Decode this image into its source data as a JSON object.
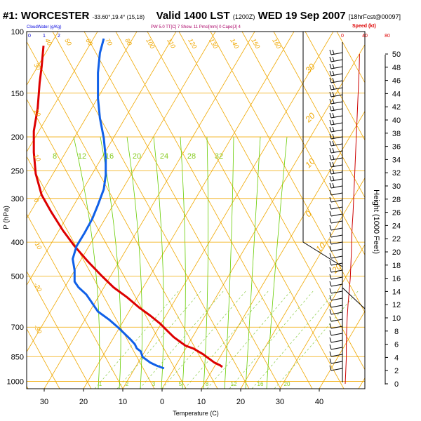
{
  "header": {
    "station": "#1: WORCESTER",
    "coords": "-33.60°,19.4° (15,18)",
    "valid": "Valid 1400 LST",
    "utc": "(1200Z)",
    "date": "WED 19 Sep 2007",
    "fcst": "[18hrFcst@00097]"
  },
  "legend_top": {
    "cloudwater": "CloudWater (g/Kg)",
    "cw_ticks": [
      "0",
      "1",
      "2"
    ],
    "stability": "PW 5.0 TT[C]  7 Show. 11 Pmsl[mm]  0 Cape[J]  4",
    "speed": "Speed (kt)",
    "speed_ticks": [
      "0",
      "40",
      "80"
    ]
  },
  "chart_data": {
    "type": "line",
    "subtype": "skew-T log-p sounding",
    "xlabel": "Temperature (C)",
    "ylabel": "P (hPa)",
    "y2label": "Height (1000 Feet)",
    "y_scale": "log",
    "xlim": [
      -35,
      45
    ],
    "ylim": [
      1050,
      100
    ],
    "x_ticks": [
      -30,
      -20,
      -10,
      0,
      10,
      20,
      30,
      40
    ],
    "x_tick_labels": [
      "30",
      "20",
      "10",
      "0",
      "10",
      "20",
      "30",
      "40"
    ],
    "p_ticks": [
      100,
      150,
      200,
      250,
      300,
      400,
      500,
      700,
      850,
      1000
    ],
    "height_ticks": [
      0,
      2,
      4,
      6,
      8,
      10,
      12,
      14,
      16,
      18,
      20,
      22,
      24,
      26,
      28,
      30,
      32,
      34,
      36,
      38,
      40,
      42,
      44,
      46,
      48,
      50
    ],
    "series": [
      {
        "color": "#dd0000",
        "points": [
          [
            870,
            31
          ],
          [
            880,
            30
          ],
          [
            900,
            27
          ],
          [
            930,
            24
          ],
          [
            960,
            21
          ],
          [
            1000,
            16
          ],
          [
            1010,
            14
          ],
          [
            1020,
            12
          ],
          [
            1050,
            9
          ],
          [
            1080,
            6
          ],
          [
            1120,
            3
          ],
          [
            1175,
            -1
          ],
          [
            1230,
            -6
          ],
          [
            1290,
            -12
          ],
          [
            1360,
            -18
          ],
          [
            1430,
            -25
          ],
          [
            1510,
            -31
          ],
          [
            1610,
            -38
          ],
          [
            1720,
            -45
          ],
          [
            1830,
            -51
          ],
          [
            1960,
            -57
          ],
          [
            2080,
            -62
          ],
          [
            2230,
            -65
          ],
          [
            2380,
            -66
          ],
          [
            2530,
            -66
          ],
          [
            2690,
            -64
          ],
          [
            2870,
            -63
          ],
          [
            2980,
            -62
          ],
          [
            3130,
            -61
          ]
        ]
      },
      {
        "color": "#1060e8",
        "points": [
          [
            860,
            1
          ],
          [
            880,
            -3
          ],
          [
            900,
            -6
          ],
          [
            920,
            -8
          ],
          [
            940,
            -10
          ],
          [
            980,
            -11
          ],
          [
            1000,
            -13
          ],
          [
            1030,
            -14
          ],
          [
            1060,
            -16
          ],
          [
            1100,
            -19
          ],
          [
            1140,
            -22
          ],
          [
            1200,
            -27
          ],
          [
            1260,
            -33
          ],
          [
            1320,
            -36
          ],
          [
            1380,
            -39
          ],
          [
            1430,
            -43
          ],
          [
            1470,
            -45
          ],
          [
            1550,
            -45
          ],
          [
            1630,
            -46
          ],
          [
            1720,
            -44
          ],
          [
            1810,
            -40
          ],
          [
            1910,
            -36
          ],
          [
            2010,
            -33
          ],
          [
            2120,
            -30
          ],
          [
            2220,
            -29
          ],
          [
            2340,
            -29
          ],
          [
            2480,
            -30
          ],
          [
            2620,
            -32
          ],
          [
            2760,
            -33
          ],
          [
            2940,
            -33
          ],
          [
            3080,
            -32
          ],
          [
            3180,
            -30
          ]
        ]
      }
    ],
    "dry_adiabat_labels": [
      "100",
      "110",
      "120",
      "130",
      "140",
      "150",
      "160",
      "80",
      "70",
      "60",
      "50",
      "40",
      "30",
      "20",
      "10",
      "0",
      "-10",
      "-20",
      "-30"
    ],
    "wet_adiabat_labels": [
      "30",
      "20",
      "10",
      "0",
      "10",
      "20"
    ],
    "mixing_ratio_labels": [
      "8",
      "12",
      "16",
      "20",
      "24",
      "28",
      "32"
    ],
    "mixing_ratio_bottom": [
      "1",
      "2",
      "3",
      "5",
      "8",
      "12",
      "16",
      "20"
    ],
    "wind": {
      "x_ticks": [
        "0",
        "40",
        "80"
      ],
      "speed_profile_kt": [
        [
          0,
          10
        ],
        [
          2,
          12
        ],
        [
          4,
          14
        ],
        [
          6,
          14
        ],
        [
          8,
          15
        ],
        [
          10,
          17
        ],
        [
          12,
          20
        ],
        [
          14,
          24
        ],
        [
          16,
          28
        ],
        [
          18,
          30
        ],
        [
          20,
          32
        ],
        [
          22,
          33
        ],
        [
          24,
          35
        ],
        [
          26,
          38
        ],
        [
          28,
          40
        ],
        [
          30,
          42
        ],
        [
          32,
          44
        ],
        [
          34,
          46
        ],
        [
          36,
          48
        ],
        [
          38,
          50
        ],
        [
          40,
          52
        ],
        [
          42,
          54
        ],
        [
          44,
          56
        ],
        [
          46,
          58
        ],
        [
          48,
          60
        ],
        [
          50,
          61
        ]
      ]
    }
  }
}
